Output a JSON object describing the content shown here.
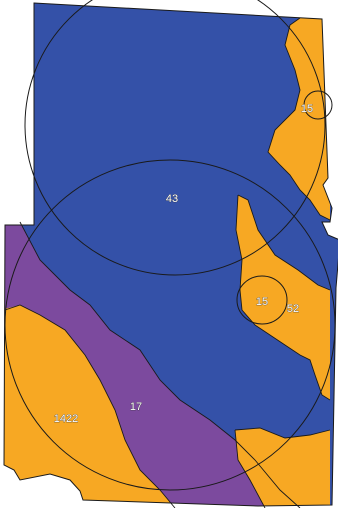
{
  "colors": {
    "blue_zone": "#3451a8",
    "orange_zone": "#f7a823",
    "purple_zone": "#7c4a9e",
    "outline": "#1a1a1a"
  },
  "labels": {
    "z43": "43",
    "z15_top": "15",
    "z15_mid": "15",
    "z52": "52",
    "z17": "17",
    "z1422": "1422"
  }
}
